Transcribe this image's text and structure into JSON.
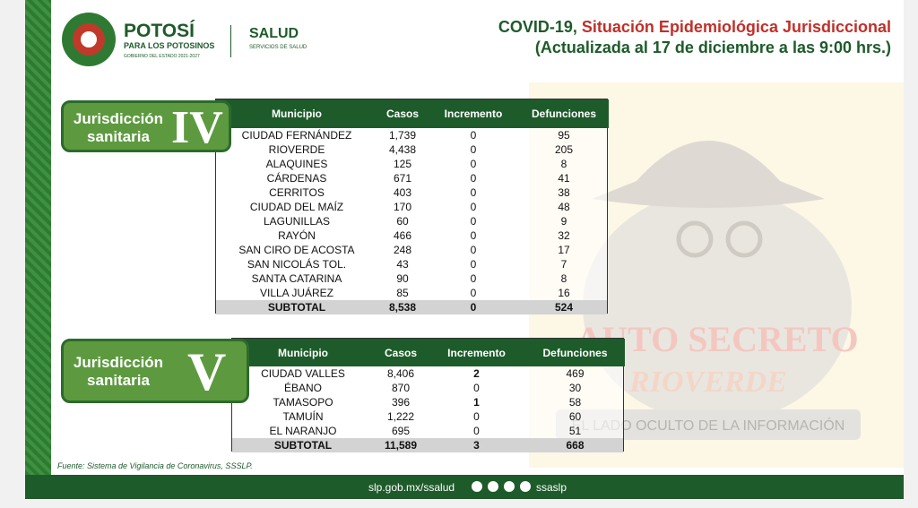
{
  "header": {
    "logo_title": "POTOSÍ",
    "logo_subtitle": "PARA LOS POTOSINOS",
    "logo_tagline": "GOBIERNO DEL ESTADO 2021-2027",
    "dept": "SALUD",
    "dept_sub": "SERVICIOS DE SALUD",
    "title_prefix": "COVID-19,",
    "title_highlight": "Situación Epidemiológica Jurisdiccional",
    "subtitle": "(Actualizada al 17 de diciembre a las 9:00 hrs.)"
  },
  "tables": [
    {
      "badge_line1": "Jurisdicción",
      "badge_line2": "sanitaria",
      "numeral": "IV",
      "columns": [
        "Municipio",
        "Casos",
        "Incremento",
        "Defunciones"
      ],
      "rows": [
        [
          "CIUDAD FERNÁNDEZ",
          "1,739",
          "0",
          "95"
        ],
        [
          "RIOVERDE",
          "4,438",
          "0",
          "205"
        ],
        [
          "ALAQUINES",
          "125",
          "0",
          "8"
        ],
        [
          "CÁRDENAS",
          "671",
          "0",
          "41"
        ],
        [
          "CERRITOS",
          "403",
          "0",
          "38"
        ],
        [
          "CIUDAD DEL MAÍZ",
          "170",
          "0",
          "48"
        ],
        [
          "LAGUNILLAS",
          "60",
          "0",
          "9"
        ],
        [
          "RAYÓN",
          "466",
          "0",
          "32"
        ],
        [
          "SAN CIRO DE ACOSTA",
          "248",
          "0",
          "17"
        ],
        [
          "SAN NICOLÁS TOL.",
          "43",
          "0",
          "7"
        ],
        [
          "SANTA CATARINA",
          "90",
          "0",
          "8"
        ],
        [
          "VILLA JUÁREZ",
          "85",
          "0",
          "16"
        ]
      ],
      "subtotal": [
        "SUBTOTAL",
        "8,538",
        "0",
        "524"
      ]
    },
    {
      "badge_line1": "Jurisdicción",
      "badge_line2": "sanitaria",
      "numeral": "V",
      "columns": [
        "Municipio",
        "Casos",
        "Incremento",
        "Defunciones"
      ],
      "rows": [
        [
          "CIUDAD VALLES",
          "8,406",
          "2",
          "469"
        ],
        [
          "ÉBANO",
          "870",
          "0",
          "30"
        ],
        [
          "TAMASOPO",
          "396",
          "1",
          "58"
        ],
        [
          "TAMUÍN",
          "1,222",
          "0",
          "60"
        ],
        [
          "EL NARANJO",
          "695",
          "0",
          "51"
        ]
      ],
      "subtotal": [
        "SUBTOTAL",
        "11,589",
        "3",
        "668"
      ]
    }
  ],
  "watermark": {
    "line1": "AUTO SECRETO",
    "line2": "RIOVERDE",
    "line3": "EL LADO OCULTO DE LA INFORMACIÓN"
  },
  "footer": {
    "source": "Fuente: Sistema de Vigilancia de Coronavirus, SSSLP.",
    "url": "slp.gob.mx/ssalud",
    "handle": "ssaslp"
  }
}
